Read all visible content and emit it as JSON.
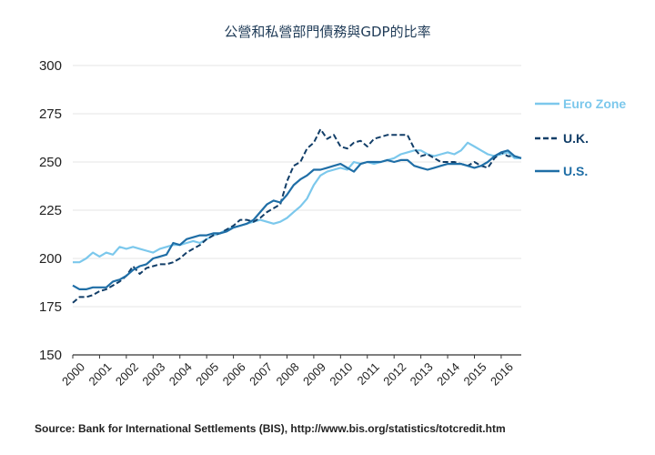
{
  "chart_data": {
    "type": "line",
    "title": "公營和私營部門債務與GDP的比率",
    "source": "Source: Bank for International Settlements (BIS), http://www.bis.org/statistics/totcredit.htm",
    "ylim": [
      150,
      300
    ],
    "yticks": [
      150,
      175,
      200,
      225,
      250,
      275,
      300
    ],
    "xlim": [
      2000,
      2016.75
    ],
    "xticks": [
      "2000",
      "2001",
      "2002",
      "2003",
      "2004",
      "2005",
      "2006",
      "2007",
      "2008",
      "2009",
      "2010",
      "2011",
      "2012",
      "2013",
      "2014",
      "2015",
      "2016"
    ],
    "grid": true,
    "legend": "right",
    "series": [
      {
        "name": "Euro Zone",
        "color": "#7cc8ec",
        "dash": false,
        "x": [
          2000,
          2000.25,
          2000.5,
          2000.75,
          2001,
          2001.25,
          2001.5,
          2001.75,
          2002,
          2002.25,
          2002.5,
          2002.75,
          2003,
          2003.25,
          2003.5,
          2003.75,
          2004,
          2004.25,
          2004.5,
          2004.75,
          2005,
          2005.25,
          2005.5,
          2005.75,
          2006,
          2006.25,
          2006.5,
          2006.75,
          2007,
          2007.25,
          2007.5,
          2007.75,
          2008,
          2008.25,
          2008.5,
          2008.75,
          2009,
          2009.25,
          2009.5,
          2009.75,
          2010,
          2010.25,
          2010.5,
          2010.75,
          2011,
          2011.25,
          2011.5,
          2011.75,
          2012,
          2012.25,
          2012.5,
          2012.75,
          2013,
          2013.25,
          2013.5,
          2013.75,
          2014,
          2014.25,
          2014.5,
          2014.75,
          2015,
          2015.25,
          2015.5,
          2015.75,
          2016,
          2016.25,
          2016.5,
          2016.75
        ],
        "values": [
          198,
          198,
          200,
          203,
          201,
          203,
          202,
          206,
          205,
          206,
          205,
          204,
          203,
          205,
          206,
          207,
          207,
          208,
          209,
          208,
          210,
          212,
          213,
          215,
          216,
          217,
          218,
          219,
          220,
          219,
          218,
          219,
          221,
          224,
          227,
          231,
          238,
          243,
          245,
          246,
          247,
          246,
          250,
          249,
          250,
          249,
          250,
          251,
          252,
          254,
          255,
          256,
          256,
          254,
          253,
          254,
          255,
          254,
          256,
          260,
          258,
          256,
          254,
          253,
          254,
          255,
          252,
          252
        ]
      },
      {
        "name": "U.K.",
        "color": "#123e68",
        "dash": true,
        "x": [
          2000,
          2000.25,
          2000.5,
          2000.75,
          2001,
          2001.25,
          2001.5,
          2001.75,
          2002,
          2002.25,
          2002.5,
          2002.75,
          2003,
          2003.25,
          2003.5,
          2003.75,
          2004,
          2004.25,
          2004.5,
          2004.75,
          2005,
          2005.25,
          2005.5,
          2005.75,
          2006,
          2006.25,
          2006.5,
          2006.75,
          2007,
          2007.25,
          2007.5,
          2007.75,
          2008,
          2008.25,
          2008.5,
          2008.75,
          2009,
          2009.25,
          2009.5,
          2009.75,
          2010,
          2010.25,
          2010.5,
          2010.75,
          2011,
          2011.25,
          2011.5,
          2011.75,
          2012,
          2012.25,
          2012.5,
          2012.75,
          2013,
          2013.25,
          2013.5,
          2013.75,
          2014,
          2014.25,
          2014.5,
          2014.75,
          2015,
          2015.25,
          2015.5,
          2015.75,
          2016,
          2016.25,
          2016.5,
          2016.75
        ],
        "values": [
          177,
          180,
          180,
          181,
          183,
          184,
          186,
          188,
          191,
          196,
          192,
          195,
          196,
          197,
          197,
          198,
          200,
          203,
          205,
          207,
          210,
          212,
          213,
          215,
          217,
          220,
          220,
          219,
          221,
          224,
          226,
          228,
          240,
          248,
          250,
          257,
          260,
          267,
          262,
          264,
          258,
          257,
          260,
          261,
          258,
          262,
          263,
          264,
          264,
          264,
          264,
          257,
          253,
          254,
          252,
          250,
          250,
          250,
          249,
          248,
          250,
          248,
          247,
          252,
          255,
          253,
          253,
          252
        ]
      },
      {
        "name": "U.S.",
        "color": "#1f6ea6",
        "dash": false,
        "x": [
          2000,
          2000.25,
          2000.5,
          2000.75,
          2001,
          2001.25,
          2001.5,
          2001.75,
          2002,
          2002.25,
          2002.5,
          2002.75,
          2003,
          2003.25,
          2003.5,
          2003.75,
          2004,
          2004.25,
          2004.5,
          2004.75,
          2005,
          2005.25,
          2005.5,
          2005.75,
          2006,
          2006.25,
          2006.5,
          2006.75,
          2007,
          2007.25,
          2007.5,
          2007.75,
          2008,
          2008.25,
          2008.5,
          2008.75,
          2009,
          2009.25,
          2009.5,
          2009.75,
          2010,
          2010.25,
          2010.5,
          2010.75,
          2011,
          2011.25,
          2011.5,
          2011.75,
          2012,
          2012.25,
          2012.5,
          2012.75,
          2013,
          2013.25,
          2013.5,
          2013.75,
          2014,
          2014.25,
          2014.5,
          2014.75,
          2015,
          2015.25,
          2015.5,
          2015.75,
          2016,
          2016.25,
          2016.5,
          2016.75
        ],
        "values": [
          186,
          184,
          184,
          185,
          185,
          185,
          188,
          189,
          191,
          194,
          196,
          197,
          200,
          201,
          202,
          208,
          207,
          210,
          211,
          212,
          212,
          213,
          213,
          214,
          216,
          217,
          218,
          220,
          224,
          228,
          230,
          229,
          233,
          238,
          241,
          243,
          246,
          246,
          247,
          248,
          249,
          247,
          245,
          249,
          250,
          250,
          250,
          251,
          250,
          251,
          251,
          248,
          247,
          246,
          247,
          248,
          249,
          249,
          249,
          248,
          247,
          248,
          250,
          253,
          255,
          256,
          253,
          252
        ]
      }
    ]
  }
}
